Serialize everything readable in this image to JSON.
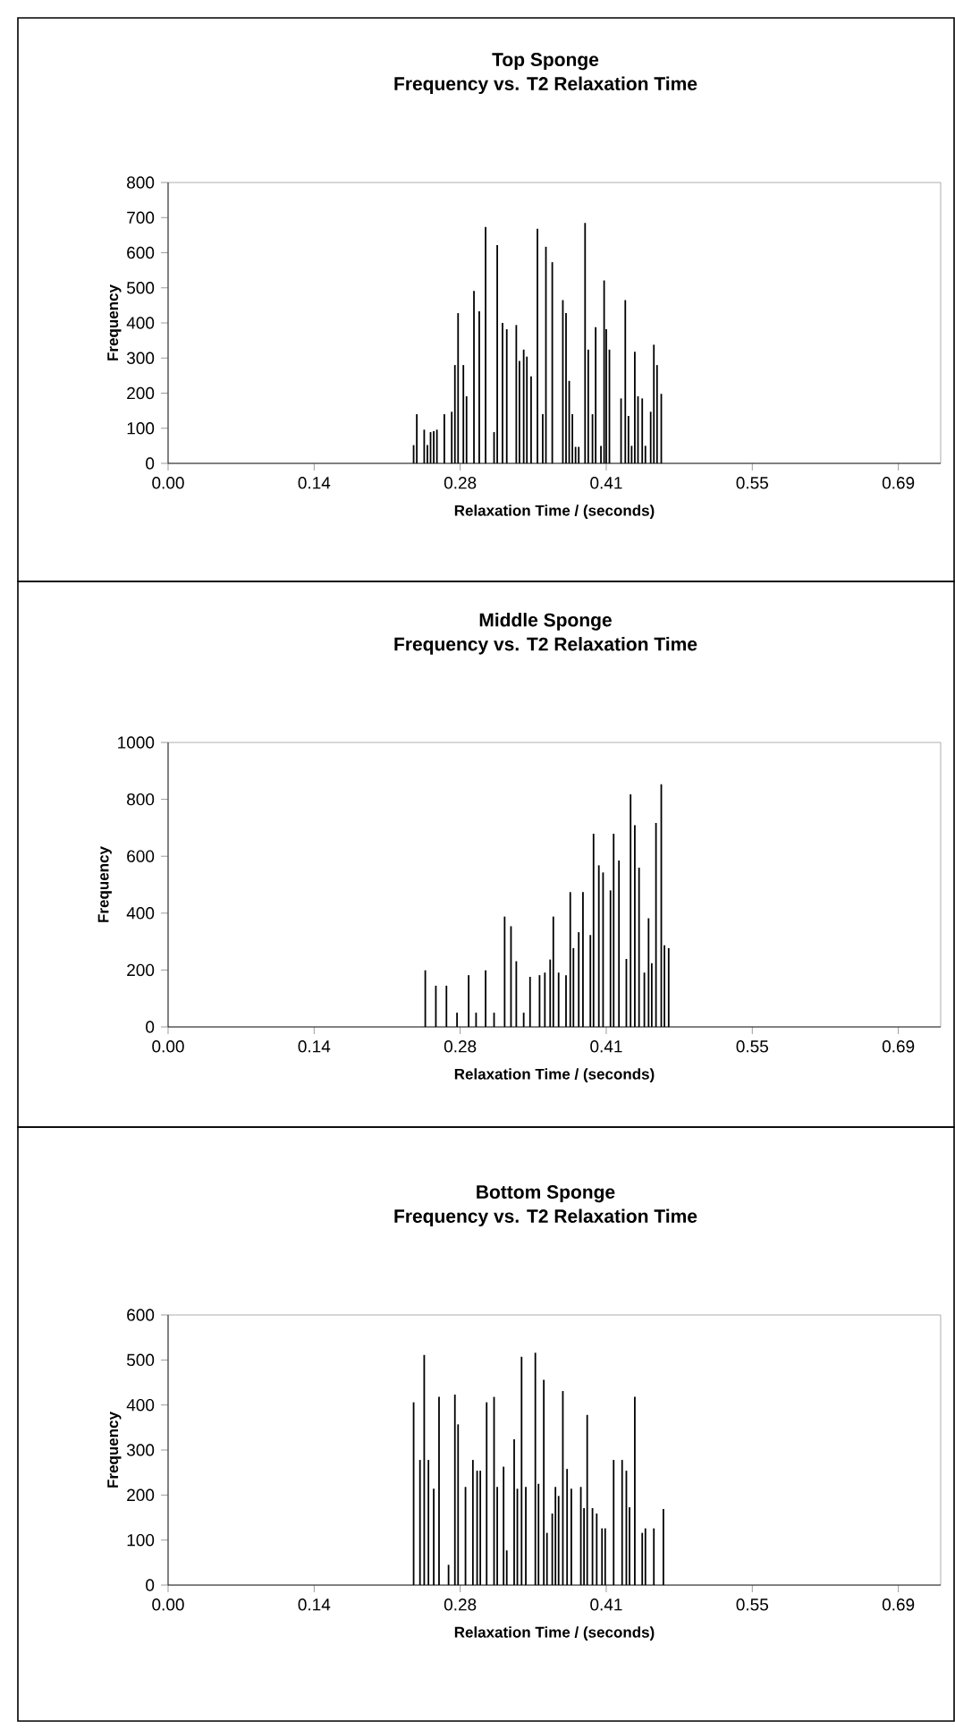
{
  "chart_data": [
    {
      "type": "bar",
      "title": "Top Sponge",
      "subtitle": "Frequency vs. T2 Relaxation Time",
      "xlabel": "Relaxation Time / (seconds)",
      "ylabel": "Frequency",
      "color": "#000000",
      "x": [
        0.232,
        0.235,
        0.242,
        0.245,
        0.248,
        0.251,
        0.254,
        0.261,
        0.268,
        0.271,
        0.274,
        0.279,
        0.282,
        0.289,
        0.294,
        0.3,
        0.308,
        0.311,
        0.316,
        0.32,
        0.329,
        0.332,
        0.336,
        0.339,
        0.343,
        0.349,
        0.354,
        0.357,
        0.363,
        0.373,
        0.376,
        0.379,
        0.382,
        0.385,
        0.388,
        0.394,
        0.397,
        0.401,
        0.404,
        0.409,
        0.412,
        0.414,
        0.417,
        0.428,
        0.432,
        0.435,
        0.438,
        0.441,
        0.444,
        0.448,
        0.451,
        0.456,
        0.459,
        0.462,
        0.466
      ],
      "values": [
        52,
        140,
        96,
        52,
        89,
        92,
        96,
        140,
        147,
        280,
        428,
        280,
        191,
        491,
        433,
        673,
        89,
        622,
        400,
        382,
        394,
        292,
        324,
        304,
        248,
        668,
        140,
        617,
        573,
        465,
        428,
        235,
        140,
        47,
        47,
        685,
        324,
        140,
        388,
        50,
        521,
        382,
        324,
        185,
        465,
        135,
        50,
        318,
        191,
        185,
        50,
        147,
        338,
        280,
        198
      ],
      "xlim": [
        0,
        0.73
      ],
      "xticks": [
        {
          "value": 0,
          "label": "0.00"
        },
        {
          "value": 0.138,
          "label": "0.14"
        },
        {
          "value": 0.276,
          "label": "0.28"
        },
        {
          "value": 0.414,
          "label": "0.41"
        },
        {
          "value": 0.552,
          "label": "0.55"
        },
        {
          "value": 0.69,
          "label": "0.69"
        }
      ],
      "ylim": [
        0,
        800
      ],
      "yticks": [
        0,
        100,
        200,
        300,
        400,
        500,
        600,
        700,
        800
      ]
    },
    {
      "type": "bar",
      "title": "Middle Sponge",
      "subtitle": "Frequency vs. T2 Relaxation Time",
      "xlabel": "Relaxation Time / (seconds)",
      "ylabel": "Frequency",
      "color": "#000000",
      "x": [
        0.243,
        0.253,
        0.263,
        0.273,
        0.284,
        0.291,
        0.3,
        0.308,
        0.318,
        0.324,
        0.329,
        0.336,
        0.342,
        0.351,
        0.356,
        0.361,
        0.364,
        0.369,
        0.376,
        0.38,
        0.383,
        0.388,
        0.392,
        0.399,
        0.402,
        0.407,
        0.411,
        0.418,
        0.421,
        0.426,
        0.433,
        0.437,
        0.441,
        0.445,
        0.45,
        0.454,
        0.457,
        0.461,
        0.466,
        0.469,
        0.473
      ],
      "values": [
        199,
        145,
        145,
        50,
        182,
        50,
        199,
        50,
        388,
        354,
        231,
        50,
        176,
        182,
        191,
        237,
        388,
        191,
        182,
        474,
        277,
        333,
        474,
        323,
        679,
        568,
        543,
        480,
        679,
        585,
        239,
        818,
        709,
        560,
        191,
        382,
        224,
        717,
        853,
        287,
        277
      ],
      "xlim": [
        0,
        0.73
      ],
      "xticks": [
        {
          "value": 0,
          "label": "0.00"
        },
        {
          "value": 0.138,
          "label": "0.14"
        },
        {
          "value": 0.276,
          "label": "0.28"
        },
        {
          "value": 0.414,
          "label": "0.41"
        },
        {
          "value": 0.552,
          "label": "0.55"
        },
        {
          "value": 0.69,
          "label": "0.69"
        }
      ],
      "ylim": [
        0,
        1000
      ],
      "yticks": [
        0,
        200,
        400,
        600,
        800,
        1000
      ]
    },
    {
      "type": "bar",
      "title": "Bottom Sponge",
      "subtitle": "Frequency vs. T2 Relaxation Time",
      "xlabel": "Relaxation Time / (seconds)",
      "ylabel": "Frequency",
      "color": "#000000",
      "x": [
        0.232,
        0.238,
        0.242,
        0.246,
        0.251,
        0.256,
        0.265,
        0.271,
        0.274,
        0.281,
        0.288,
        0.292,
        0.295,
        0.301,
        0.308,
        0.311,
        0.317,
        0.32,
        0.327,
        0.33,
        0.334,
        0.338,
        0.347,
        0.35,
        0.355,
        0.358,
        0.363,
        0.366,
        0.369,
        0.373,
        0.377,
        0.381,
        0.39,
        0.393,
        0.396,
        0.401,
        0.405,
        0.41,
        0.413,
        0.421,
        0.429,
        0.433,
        0.436,
        0.441,
        0.448,
        0.451,
        0.459,
        0.468
      ],
      "values": [
        406,
        278,
        511,
        278,
        214,
        418,
        45,
        423,
        357,
        218,
        278,
        254,
        254,
        406,
        418,
        218,
        263,
        77,
        324,
        214,
        507,
        218,
        516,
        225,
        456,
        116,
        159,
        218,
        198,
        431,
        258,
        214,
        218,
        171,
        378,
        171,
        159,
        126,
        126,
        278,
        278,
        254,
        173,
        418,
        116,
        126,
        126,
        169
      ],
      "xlim": [
        0,
        0.73
      ],
      "xticks": [
        {
          "value": 0,
          "label": "0.00"
        },
        {
          "value": 0.138,
          "label": "0.14"
        },
        {
          "value": 0.276,
          "label": "0.28"
        },
        {
          "value": 0.414,
          "label": "0.41"
        },
        {
          "value": 0.552,
          "label": "0.55"
        },
        {
          "value": 0.69,
          "label": "0.69"
        }
      ],
      "ylim": [
        0,
        600
      ],
      "yticks": [
        0,
        100,
        200,
        300,
        400,
        500,
        600
      ]
    }
  ]
}
